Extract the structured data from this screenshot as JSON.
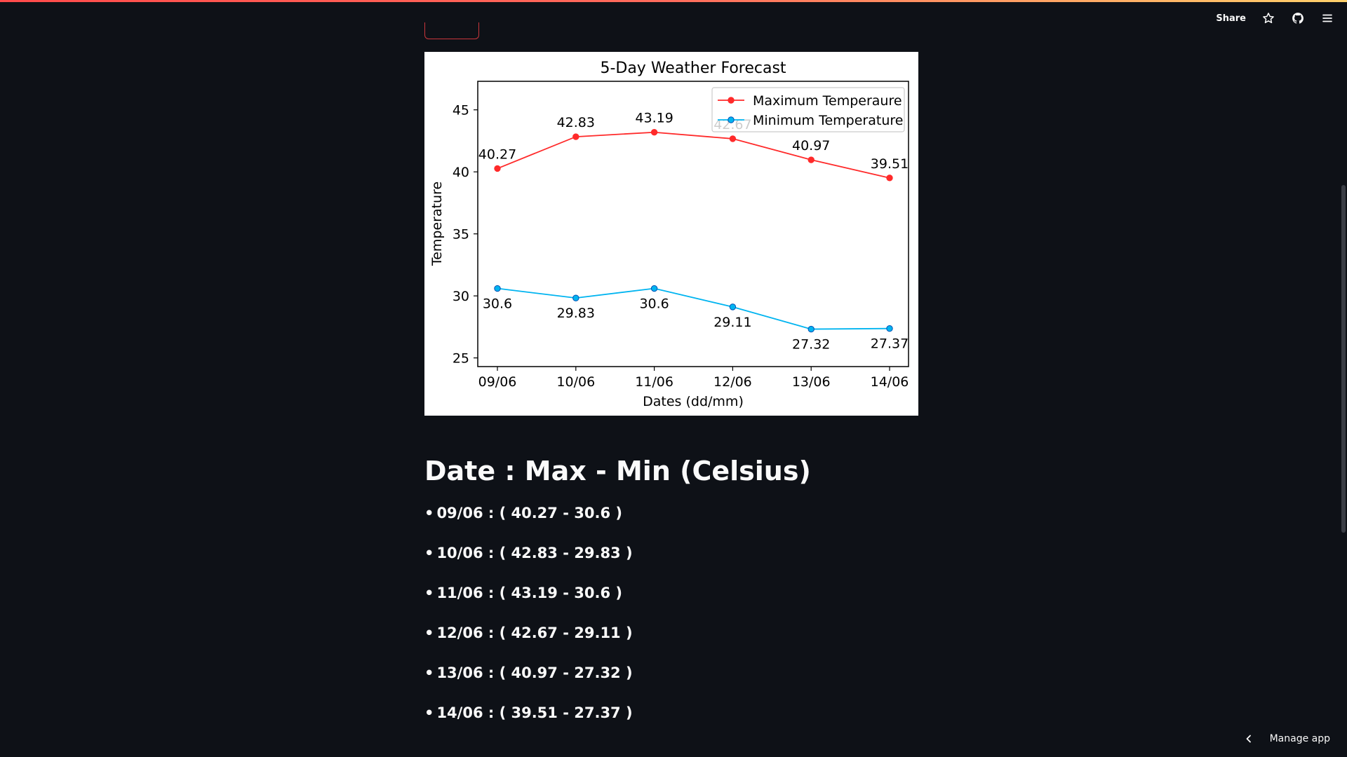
{
  "toolbar": {
    "share_label": "Share",
    "icons": [
      "star-icon",
      "github-icon",
      "menu-icon"
    ]
  },
  "chart_data": {
    "type": "line",
    "title": "5-Day Weather Forecast",
    "xlabel": "Dates (dd/mm)",
    "ylabel": "Temperature",
    "categories": [
      "09/06",
      "10/06",
      "11/06",
      "12/06",
      "13/06",
      "14/06"
    ],
    "yticks": [
      25,
      30,
      35,
      40,
      45
    ],
    "ylim": [
      24.3,
      47.3
    ],
    "legend_position": "top-right",
    "series": [
      {
        "name": "Maximum Temperaure",
        "color": "#ff2a2a",
        "values": [
          40.27,
          42.83,
          43.19,
          42.67,
          40.97,
          39.51
        ],
        "labels": [
          "40.27",
          "42.83",
          "43.19",
          "42.67",
          "40.97",
          "39.51"
        ],
        "label_side": "above"
      },
      {
        "name": "Minimum Temperature",
        "color": "#00b4f0",
        "values": [
          30.6,
          29.83,
          30.6,
          29.11,
          27.32,
          27.37
        ],
        "labels": [
          "30.6",
          "29.83",
          "30.6",
          "29.11",
          "27.32",
          "27.37"
        ],
        "label_side": "below"
      }
    ]
  },
  "summary": {
    "heading": "Date : Max - Min (Celsius)",
    "bullet": "•",
    "items": [
      "09/06 : ( 40.27 - 30.6 )",
      "10/06 : ( 42.83 - 29.83 )",
      "11/06 : ( 43.19 - 30.6 )",
      "12/06 : ( 42.67 - 29.11 )",
      "13/06 : ( 40.97 - 27.32 )",
      "14/06 : ( 39.51 - 27.37 )"
    ]
  },
  "footer": {
    "manage_label": "Manage app"
  }
}
